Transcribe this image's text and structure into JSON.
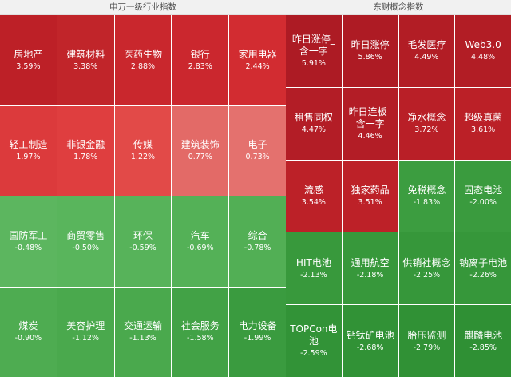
{
  "left_panel": {
    "title": "申万一级行业指数",
    "tiles": [
      {
        "name": "房地产",
        "pct": "3.59%",
        "color": "#bd2027"
      },
      {
        "name": "建筑材料",
        "pct": "3.38%",
        "color": "#c1252a"
      },
      {
        "name": "医药生物",
        "pct": "2.88%",
        "color": "#c9272d"
      },
      {
        "name": "银行",
        "pct": "2.83%",
        "color": "#cb272e"
      },
      {
        "name": "家用电器",
        "pct": "2.44%",
        "color": "#d22c31"
      },
      {
        "name": "轻工制造",
        "pct": "1.97%",
        "color": "#dc3a3c"
      },
      {
        "name": "非银金融",
        "pct": "1.78%",
        "color": "#df3e3f"
      },
      {
        "name": "传媒",
        "pct": "1.22%",
        "color": "#e24a48"
      },
      {
        "name": "建筑装饰",
        "pct": "0.77%",
        "color": "#e36a67"
      },
      {
        "name": "电子",
        "pct": "0.73%",
        "color": "#e4716e"
      },
      {
        "name": "国防军工",
        "pct": "-0.48%",
        "color": "#5cb65f"
      },
      {
        "name": "商贸零售",
        "pct": "-0.50%",
        "color": "#59b55c"
      },
      {
        "name": "环保",
        "pct": "-0.59%",
        "color": "#57b35a"
      },
      {
        "name": "汽车",
        "pct": "-0.69%",
        "color": "#54b157"
      },
      {
        "name": "综合",
        "pct": "-0.78%",
        "color": "#52af55"
      },
      {
        "name": "煤炭",
        "pct": "-0.90%",
        "color": "#4eac51"
      },
      {
        "name": "美容护理",
        "pct": "-1.12%",
        "color": "#4aa94d"
      },
      {
        "name": "交通运输",
        "pct": "-1.13%",
        "color": "#4aa94d"
      },
      {
        "name": "社会服务",
        "pct": "-1.58%",
        "color": "#42a246"
      },
      {
        "name": "电力设备",
        "pct": "-1.99%",
        "color": "#3a9b3f"
      }
    ]
  },
  "right_panel": {
    "title": "东财概念指数",
    "tiles": [
      {
        "name": "昨日涨停_含一字",
        "pct": "5.91%",
        "color": "#ad1b24"
      },
      {
        "name": "昨日涨停",
        "pct": "5.86%",
        "color": "#ae1b24"
      },
      {
        "name": "毛发医疗",
        "pct": "4.49%",
        "color": "#b21d25"
      },
      {
        "name": "Web3.0",
        "pct": "4.48%",
        "color": "#b21d25"
      },
      {
        "name": "租售同权",
        "pct": "4.47%",
        "color": "#b31d26"
      },
      {
        "name": "昨日连板_含一字",
        "pct": "4.46%",
        "color": "#b31d26"
      },
      {
        "name": "净水概念",
        "pct": "3.72%",
        "color": "#b91f27"
      },
      {
        "name": "超级真菌",
        "pct": "3.61%",
        "color": "#bb2027"
      },
      {
        "name": "流感",
        "pct": "3.54%",
        "color": "#bc2128"
      },
      {
        "name": "独家药品",
        "pct": "3.51%",
        "color": "#bd2128"
      },
      {
        "name": "免税概念",
        "pct": "-1.83%",
        "color": "#3c9d40"
      },
      {
        "name": "固态电池",
        "pct": "-2.00%",
        "color": "#3a9b3e"
      },
      {
        "name": "HIT电池",
        "pct": "-2.13%",
        "color": "#38993c"
      },
      {
        "name": "通用航空",
        "pct": "-2.18%",
        "color": "#37983b"
      },
      {
        "name": "供销社概念",
        "pct": "-2.25%",
        "color": "#36973a"
      },
      {
        "name": "钠离子电池",
        "pct": "-2.26%",
        "color": "#36973a"
      },
      {
        "name": "TOPCon电池",
        "pct": "-2.59%",
        "color": "#329337"
      },
      {
        "name": "钙钛矿电池",
        "pct": "-2.68%",
        "color": "#319236"
      },
      {
        "name": "胎压监测",
        "pct": "-2.79%",
        "color": "#309135"
      },
      {
        "name": "麒麟电池",
        "pct": "-2.85%",
        "color": "#2f9034"
      }
    ]
  }
}
